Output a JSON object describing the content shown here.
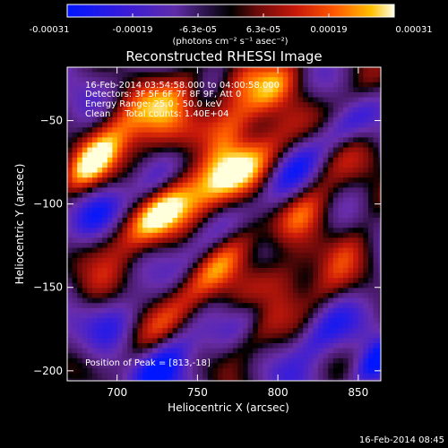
{
  "colorbar": {
    "ticks": [
      "-0.00031",
      "-0.00019",
      "-6.3e-05",
      "6.3e-05",
      "0.00019",
      "0.00031"
    ],
    "unit_label": "(photons cm⁻² s⁻¹ asec⁻²)"
  },
  "chart_data": {
    "type": "heatmap",
    "title": "Reconstructed RHESSI Image",
    "xlabel": "Heliocentric X (arcsec)",
    "ylabel": "Heliocentric Y (arcsec)",
    "xlim": [
      669,
      864
    ],
    "ylim": [
      -206,
      -18
    ],
    "xticks": [
      700,
      750,
      800,
      850
    ],
    "yticks": [
      -50,
      -100,
      -150,
      -200
    ],
    "zlim": [
      -0.00031,
      0.00031
    ],
    "colormap": "rhessi-blue-purple-black-red-yellow-white",
    "annotations": [
      "16-Feb-2014 03:54:58.000 to 04:00:58.000",
      "Detectors: 3F 5F 6F 7F 8F 9F, Att 0",
      "Energy Range: 25.0 - 50.0 keV",
      "Clean     Total counts: 1.40E+04"
    ],
    "peak_label": "Position of Peak = [813,-18]",
    "pattern": "diagonal ripple artifacts alternating bright (red/yellow) and dark (purple/blue) bands"
  },
  "footer": {
    "timestamp": "16-Feb-2014 08:45"
  }
}
